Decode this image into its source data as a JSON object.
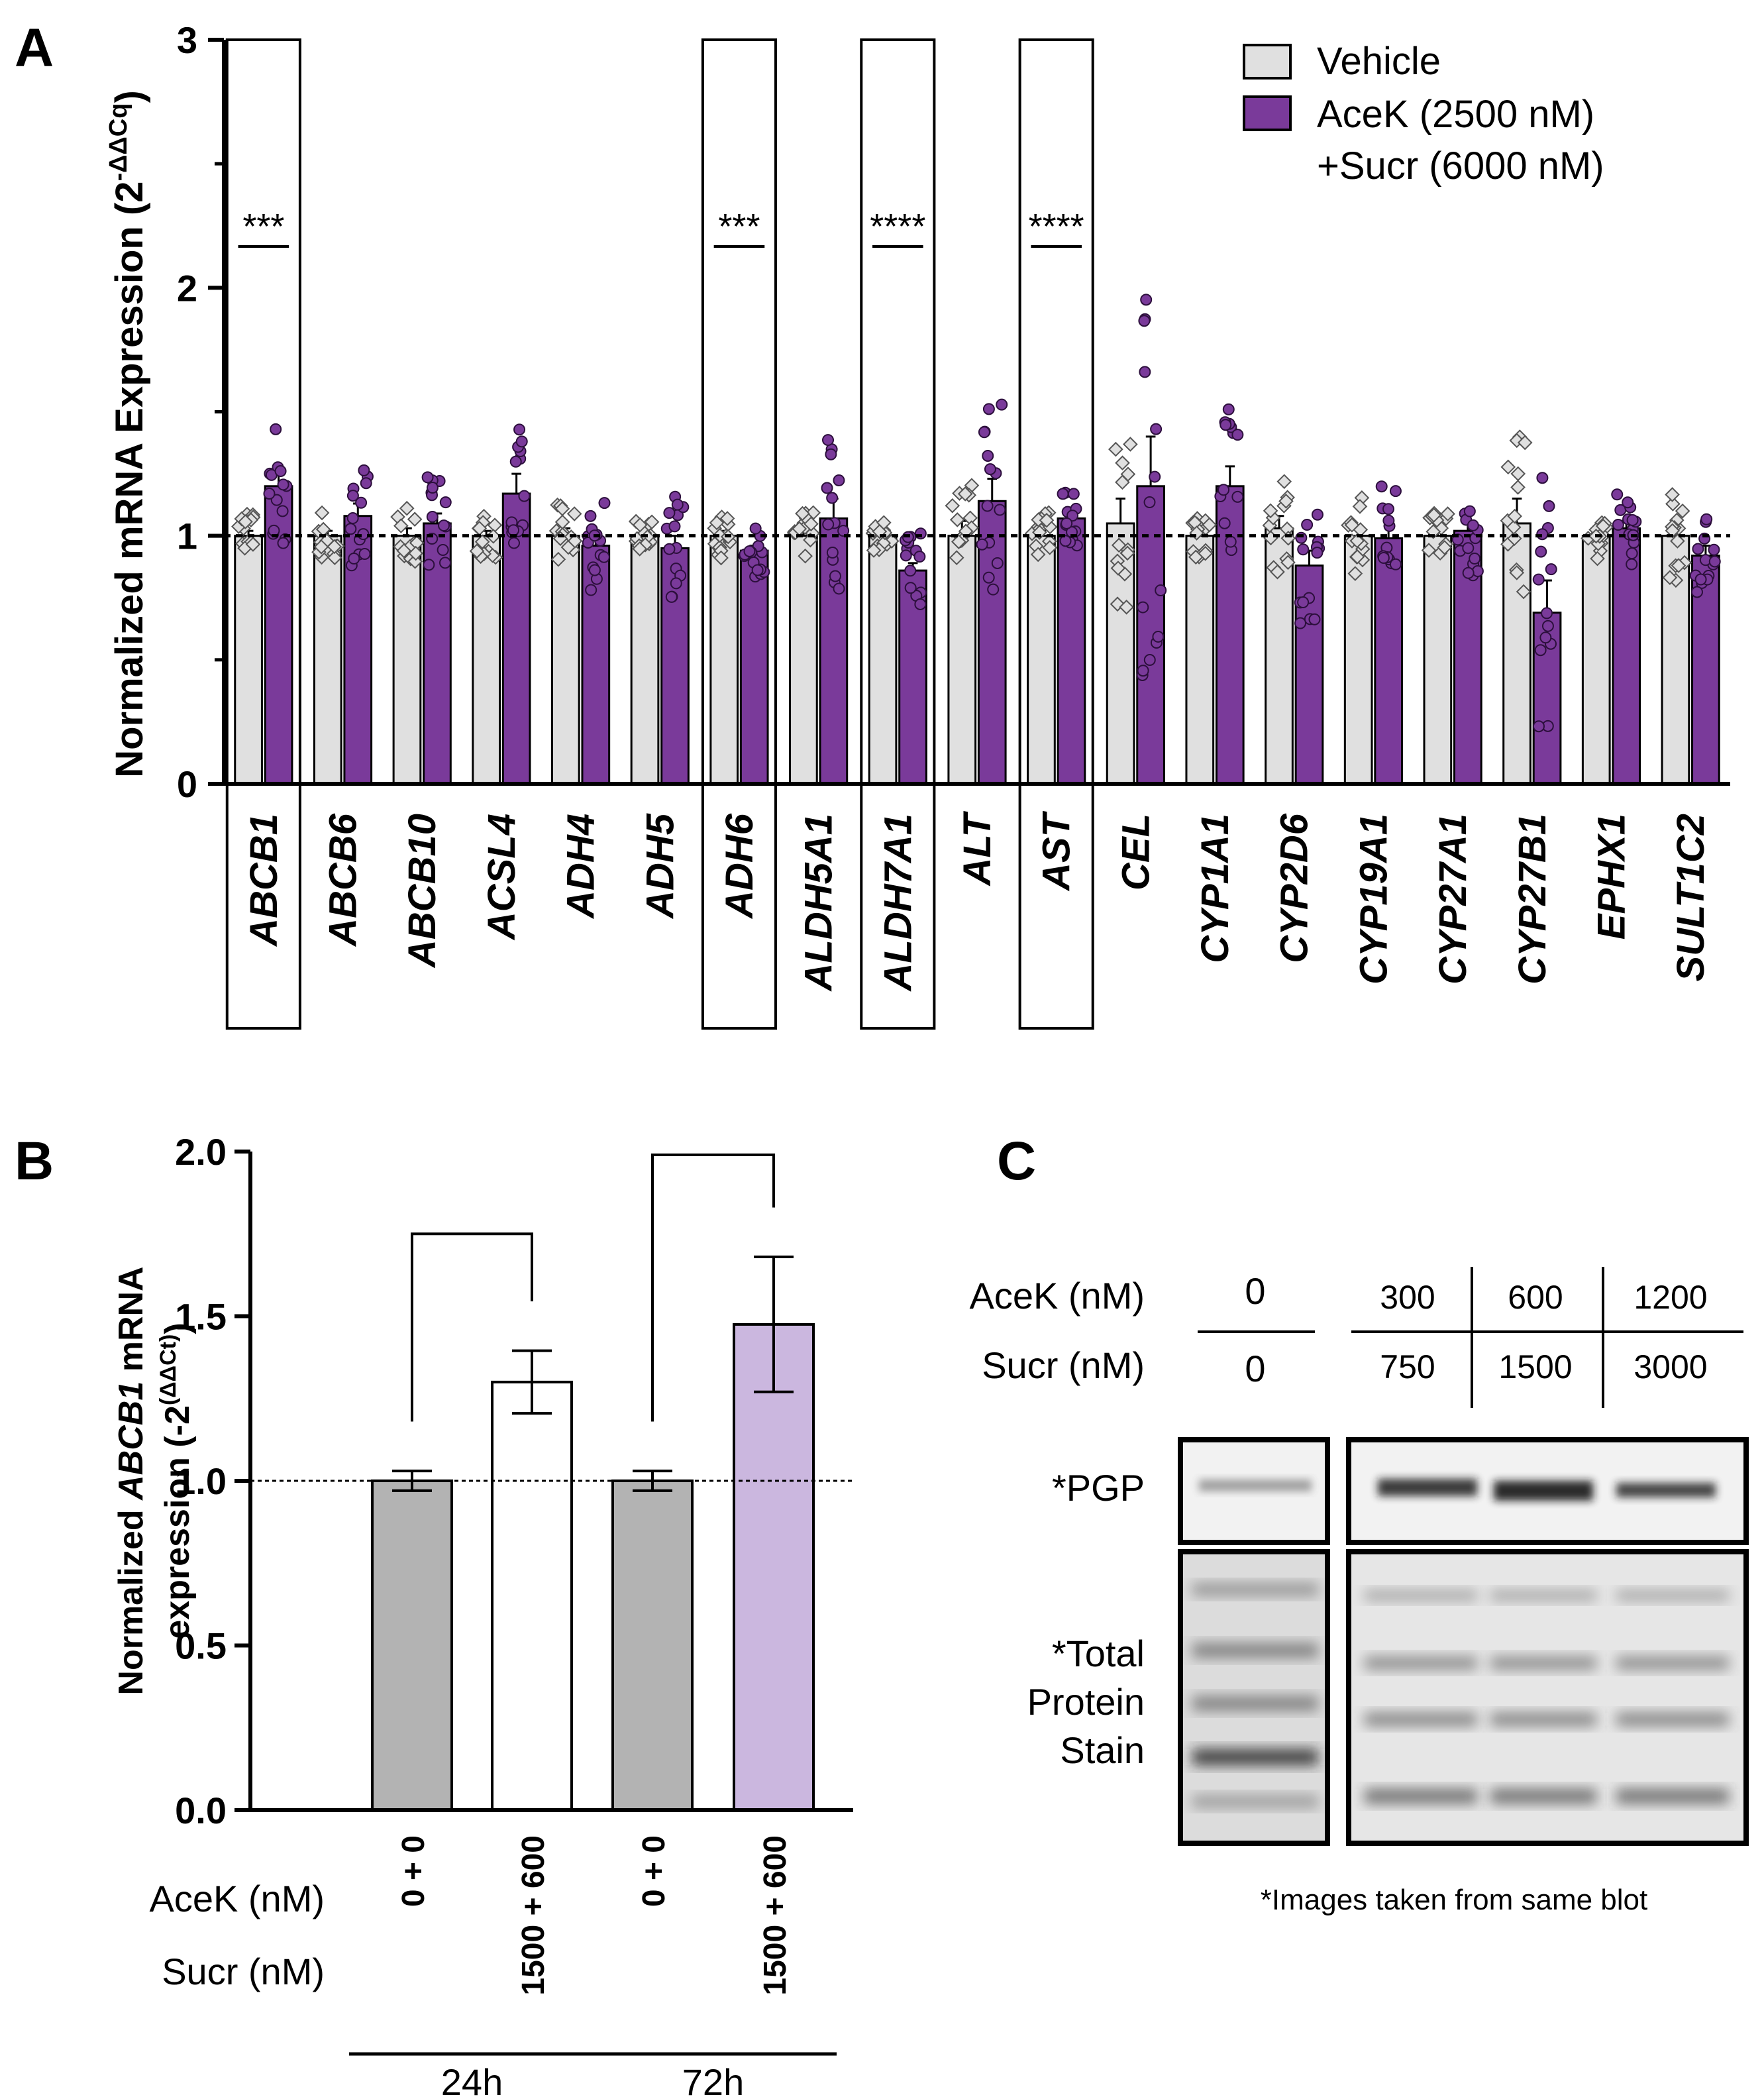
{
  "panels": {
    "A": {
      "label": "A"
    },
    "B": {
      "label": "B"
    },
    "C": {
      "label": "C"
    }
  },
  "chart_data": [
    {
      "id": "A",
      "type": "bar",
      "title": "",
      "ylabel_main": "Normalized mRNA Expression (2",
      "ylabel_sup": "-ΔΔCq",
      "ylabel_close": ")",
      "ylim": [
        0,
        3
      ],
      "yticks": [
        "0",
        "1",
        "2",
        "3"
      ],
      "reference_line": 1,
      "categories": [
        "ABCB1",
        "ABCB6",
        "ABCB10",
        "ACSL4",
        "ADH4",
        "ADH5",
        "ADH6",
        "ALDH5A1",
        "ALDH7A1",
        "ALT",
        "AST",
        "CEL",
        "CYP1A1",
        "CYP2D6",
        "CYP19A1",
        "CYP27A1",
        "CYP27B1",
        "EPHX1",
        "SULT1C2"
      ],
      "boxed_categories": [
        "ABCB1",
        "ADH6",
        "ALDH7A1",
        "AST"
      ],
      "significance": [
        {
          "category": "ABCB1",
          "label": "***"
        },
        {
          "category": "ADH6",
          "label": "***"
        },
        {
          "category": "ALDH7A1",
          "label": "****"
        },
        {
          "category": "AST",
          "label": "****"
        }
      ],
      "legend": {
        "position": "top-right",
        "entries": [
          {
            "label": "Vehicle",
            "color": "#e0e0e0"
          },
          {
            "label": "AceK (2500 nM)",
            "label2": "+Sucr (6000 nM)",
            "color": "#7a3a9a"
          }
        ]
      },
      "series": [
        {
          "name": "Vehicle",
          "color": "#e0e0e0",
          "values": [
            1.0,
            1.0,
            1.0,
            1.0,
            1.0,
            1.0,
            1.0,
            1.0,
            1.0,
            1.0,
            1.0,
            1.05,
            1.0,
            1.03,
            1.0,
            1.0,
            1.05,
            1.0,
            1.0
          ],
          "errors": [
            0.02,
            0.02,
            0.03,
            0.02,
            0.03,
            0.01,
            0.02,
            0.02,
            0.01,
            0.06,
            0.02,
            0.1,
            0.02,
            0.05,
            0.04,
            0.02,
            0.1,
            0.02,
            0.05
          ]
        },
        {
          "name": "AceK (2500 nM) +Sucr (6000 nM)",
          "color": "#7a3a9a",
          "values": [
            1.2,
            1.08,
            1.05,
            1.17,
            0.96,
            0.95,
            0.94,
            1.07,
            0.86,
            1.14,
            1.07,
            1.2,
            1.2,
            0.88,
            0.99,
            1.02,
            0.69,
            1.03,
            0.92
          ],
          "errors": [
            0.05,
            0.05,
            0.04,
            0.08,
            0.04,
            0.05,
            0.02,
            0.08,
            0.03,
            0.09,
            0.02,
            0.2,
            0.08,
            0.06,
            0.05,
            0.04,
            0.13,
            0.03,
            0.04
          ]
        }
      ]
    },
    {
      "id": "B",
      "type": "bar",
      "title": "",
      "ylabel_line1_a": "Normalized ",
      "ylabel_line1_b": "ABCB1",
      "ylabel_line1_c": " mRNA",
      "ylabel_line2": "expression (-2",
      "ylabel_line2_sup": "(ΔΔCt)",
      "ylabel_line2_close": ")",
      "ylim": [
        0,
        2.0
      ],
      "yticks": [
        "0.0",
        "0.5",
        "1.0",
        "1.5",
        "2.0"
      ],
      "reference_line": 1.0,
      "row_labels": [
        "AceK  (nM)",
        "Sucr (nM)"
      ],
      "categories": [
        "0 + 0",
        "1500 + 600",
        "0 + 0",
        "1500 + 600"
      ],
      "values": [
        1.0,
        1.3,
        1.0,
        1.475
      ],
      "errors": [
        0.03,
        0.095,
        0.03,
        0.205
      ],
      "colors": [
        "#b3b3b3",
        "#ffffff",
        "#b3b3b3",
        "#cbb7df"
      ],
      "groups": [
        {
          "label": "24h",
          "members": [
            0,
            1
          ]
        },
        {
          "label": "72h",
          "members": [
            2,
            3
          ]
        }
      ],
      "comparisons": [
        {
          "from": 0,
          "to": 1,
          "label": ""
        },
        {
          "from": 2,
          "to": 3,
          "label": ""
        }
      ]
    }
  ],
  "blot": {
    "acek_label": "AceK  (nM)",
    "sucr_label": "Sucr (nM)",
    "acek_values": [
      "0",
      "300",
      "600",
      "1200"
    ],
    "sucr_values": [
      "0",
      "750",
      "1500",
      "3000"
    ],
    "pgp_label": "*PGP",
    "total_label_lines": [
      "*Total",
      "Protein",
      "Stain"
    ],
    "footnote": "*Images taken from same blot"
  }
}
